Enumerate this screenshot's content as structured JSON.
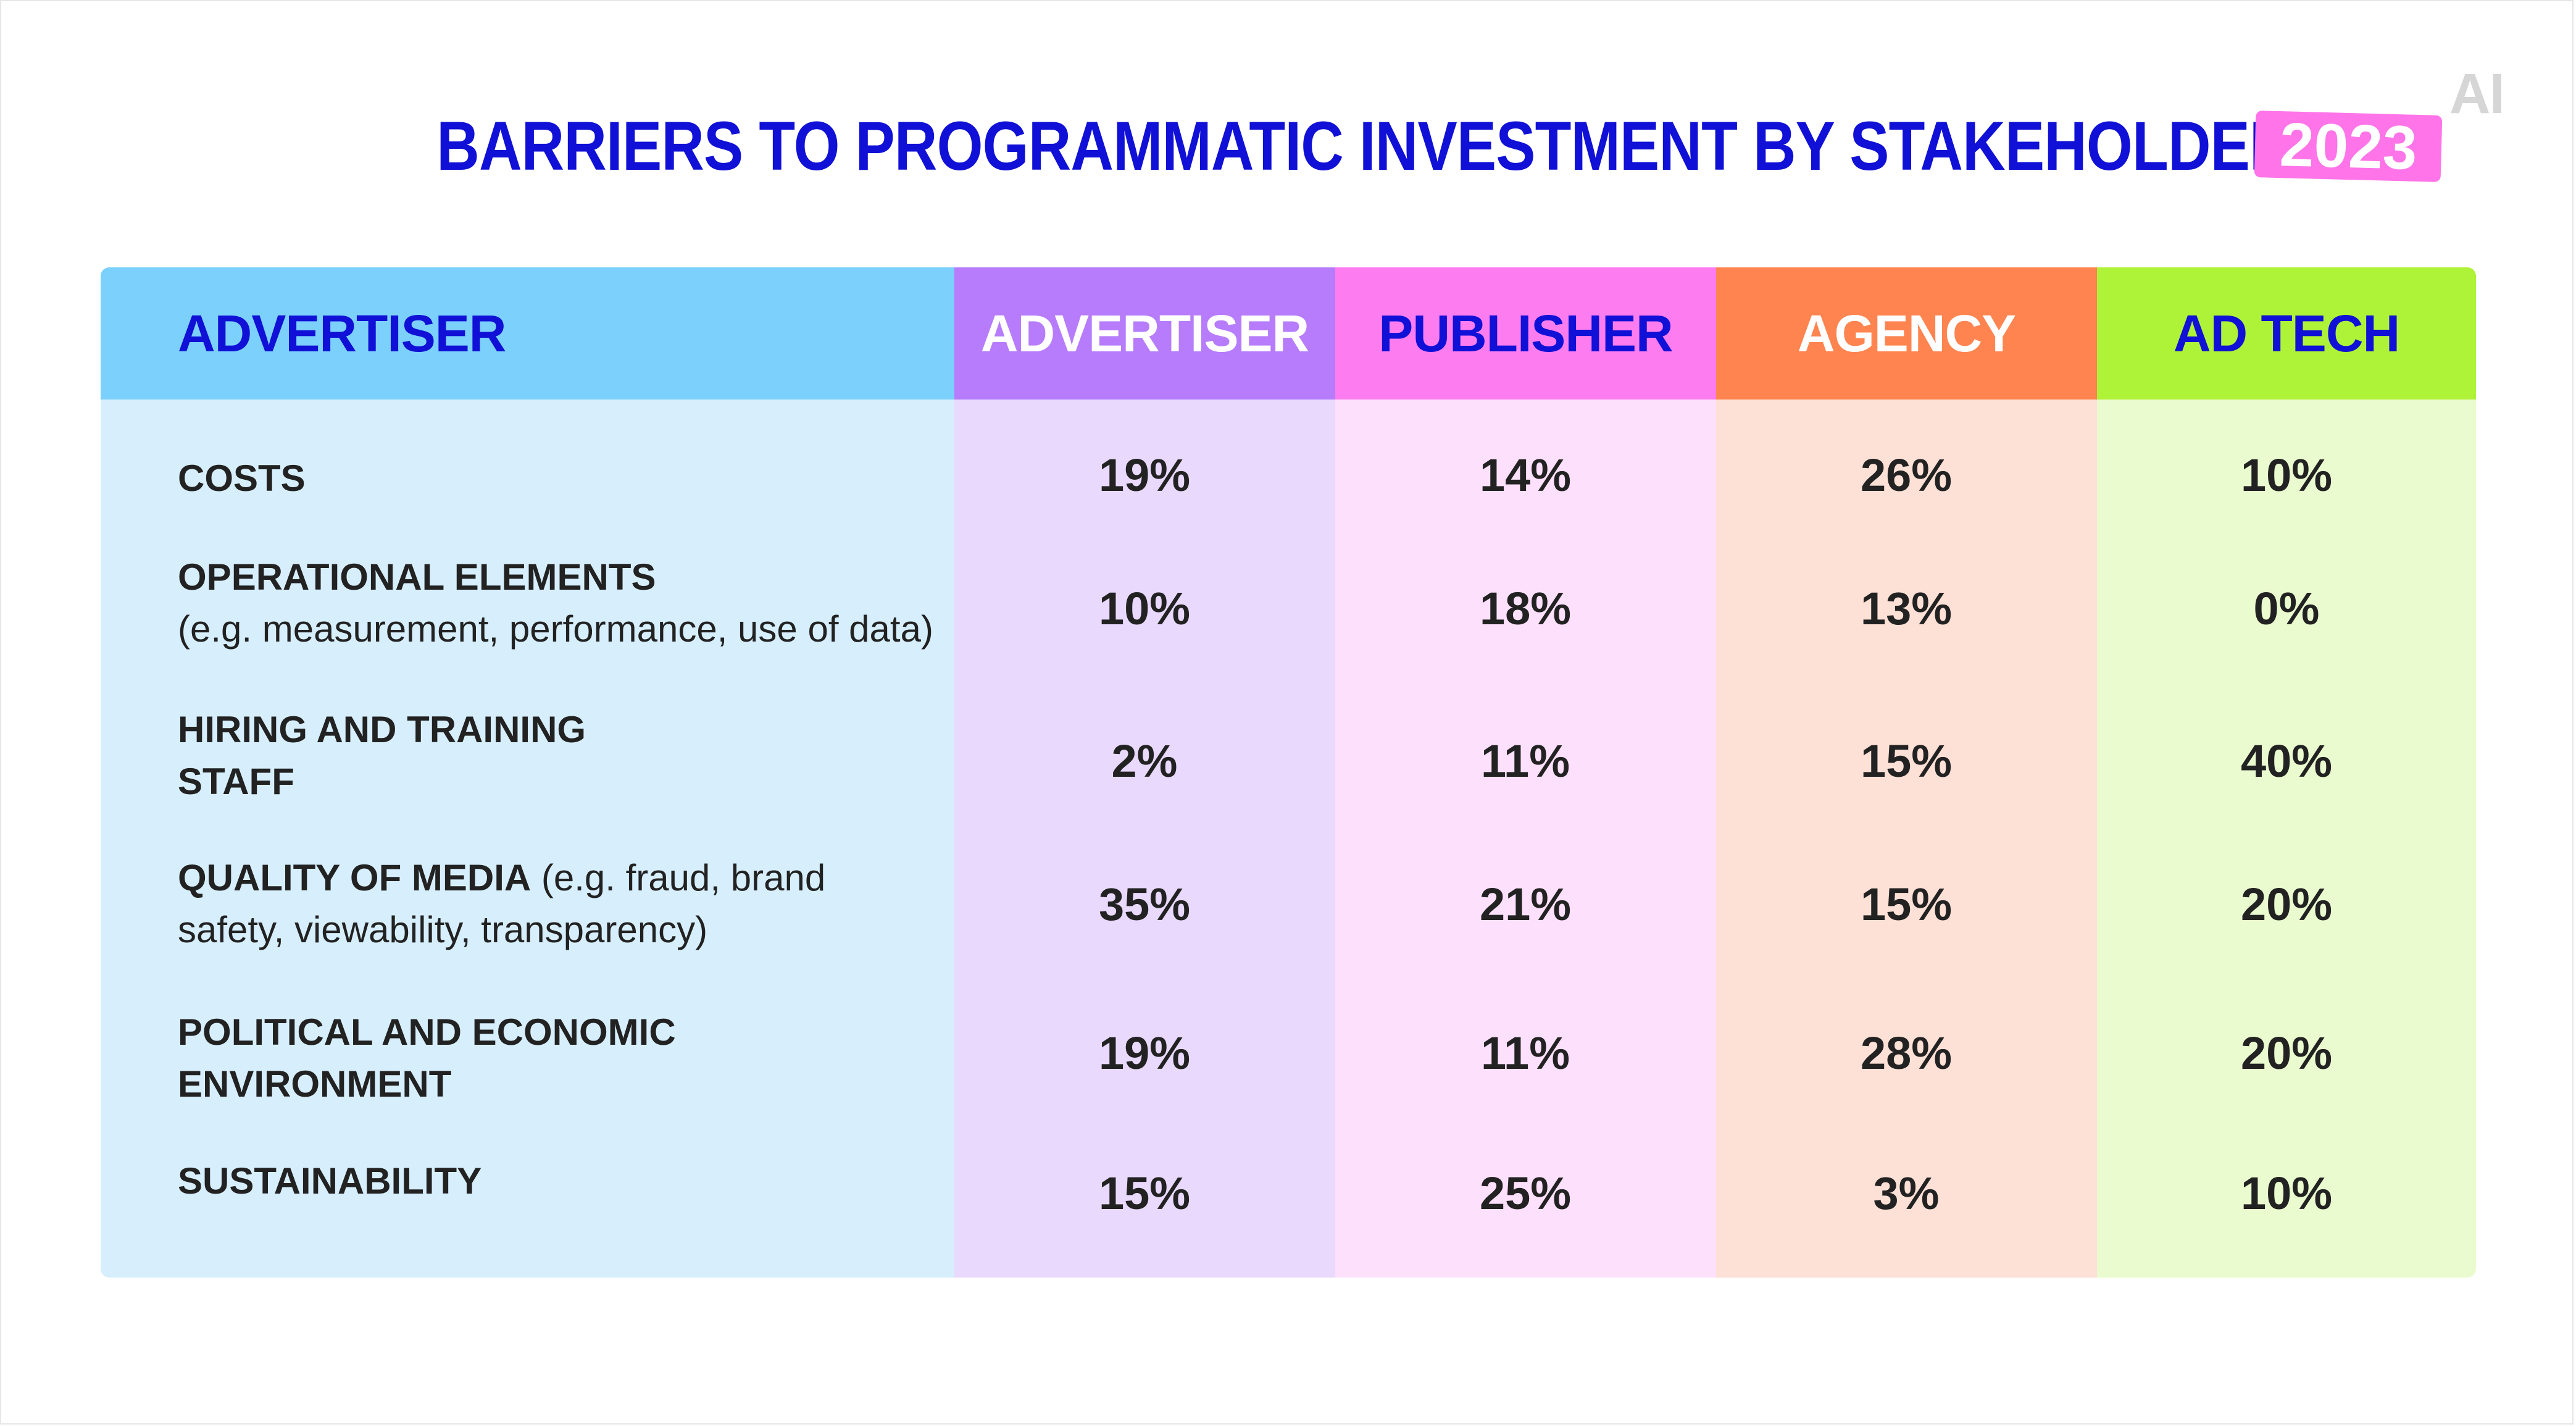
{
  "logo_text": "AI",
  "title": "BARRIERS TO PROGRAMMATIC INVESTMENT BY STAKEHOLDER",
  "year_badge": "2023",
  "colors": {
    "title": "#1010d6",
    "year_badge": "#ff74e8",
    "advertiser_label_header": "#7bd0fc",
    "advertiser_label_body": "#d7effc",
    "advertiser_header": "#b67cfb",
    "advertiser_body": "#e9d9fd",
    "publisher_header": "#fd7cf0",
    "publisher_body": "#fde0fb",
    "agency_header": "#ff8450",
    "agency_body": "#fde0d6",
    "adtech_header": "#aef337",
    "adtech_body": "#eafccf"
  },
  "chart_data": {
    "type": "table",
    "row_header": "ADVERTISER",
    "columns": [
      "ADVERTISER",
      "PUBLISHER",
      "AGENCY",
      "AD TECH"
    ],
    "rows": [
      {
        "label": "COSTS",
        "note": "",
        "values": [
          "19%",
          "14%",
          "26%",
          "10%"
        ]
      },
      {
        "label": "OPERATIONAL ELEMENTS",
        "note": "(e.g. measurement, performance, use of data)",
        "values": [
          "10%",
          "18%",
          "13%",
          "0%"
        ]
      },
      {
        "label": "HIRING AND TRAINING STAFF",
        "note": "",
        "values": [
          "2%",
          "11%",
          "15%",
          "40%"
        ]
      },
      {
        "label": "QUALITY OF MEDIA",
        "note": "(e.g. fraud, brand safety, viewability, transparency)",
        "values": [
          "35%",
          "21%",
          "15%",
          "20%"
        ]
      },
      {
        "label": "POLITICAL AND ECONOMIC ENVIRONMENT",
        "note": "",
        "values": [
          "19%",
          "11%",
          "28%",
          "20%"
        ]
      },
      {
        "label": "SUSTAINABILITY",
        "note": "",
        "values": [
          "15%",
          "25%",
          "3%",
          "10%"
        ]
      }
    ]
  }
}
